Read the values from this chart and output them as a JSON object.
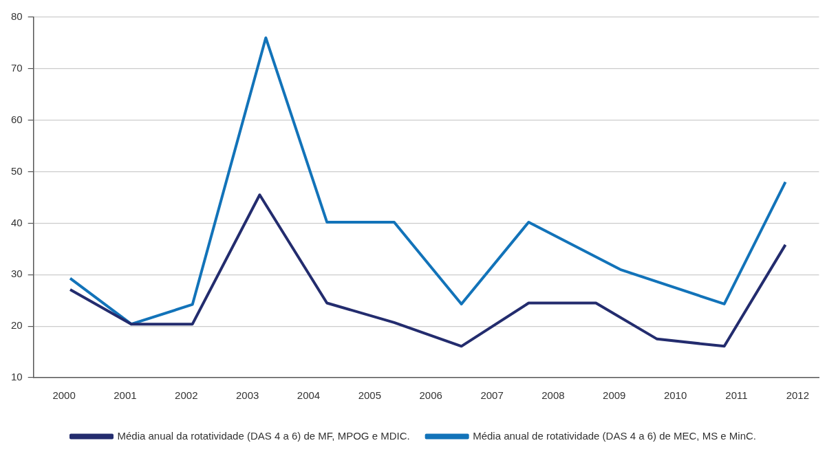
{
  "chart_data": {
    "type": "line",
    "xlim": [
      1999.5,
      2012.35
    ],
    "xticks": [
      2000,
      2001,
      2002,
      2003,
      2004,
      2005,
      2006,
      2007,
      2008,
      2009,
      2010,
      2011,
      2012
    ],
    "ylim": [
      10,
      80
    ],
    "yticks": [
      10,
      20,
      30,
      40,
      50,
      60,
      70,
      80
    ],
    "grid": "y",
    "legend": "bottom",
    "marker": "none",
    "line_style": "solid",
    "series": [
      {
        "name": "Média anual da rotatividade (DAS 4 a 6) de MF, MPOG e MDIC.",
        "color": "#232c6e",
        "x": [
          2000.1,
          2001.1,
          2002.1,
          2003.2,
          2004.3,
          2005.4,
          2006.5,
          2007.6,
          2008.7,
          2009.7,
          2010.8,
          2011.8
        ],
        "values": [
          27.1,
          20.4,
          20.4,
          45.5,
          24.5,
          20.7,
          16.1,
          24.5,
          24.5,
          17.5,
          16.1,
          35.8
        ]
      },
      {
        "name": "Média anual de rotatividade (DAS 4 a 6) de MEC, MS e MinC.",
        "color": "#1273b9",
        "x": [
          2000.1,
          2001.1,
          2002.1,
          2003.3,
          2004.3,
          2005.4,
          2006.5,
          2007.6,
          2009.1,
          2010.8,
          2011.8
        ],
        "values": [
          29.3,
          20.4,
          24.2,
          76,
          40.2,
          40.2,
          24.3,
          40.2,
          31,
          24.3,
          48
        ]
      }
    ]
  }
}
